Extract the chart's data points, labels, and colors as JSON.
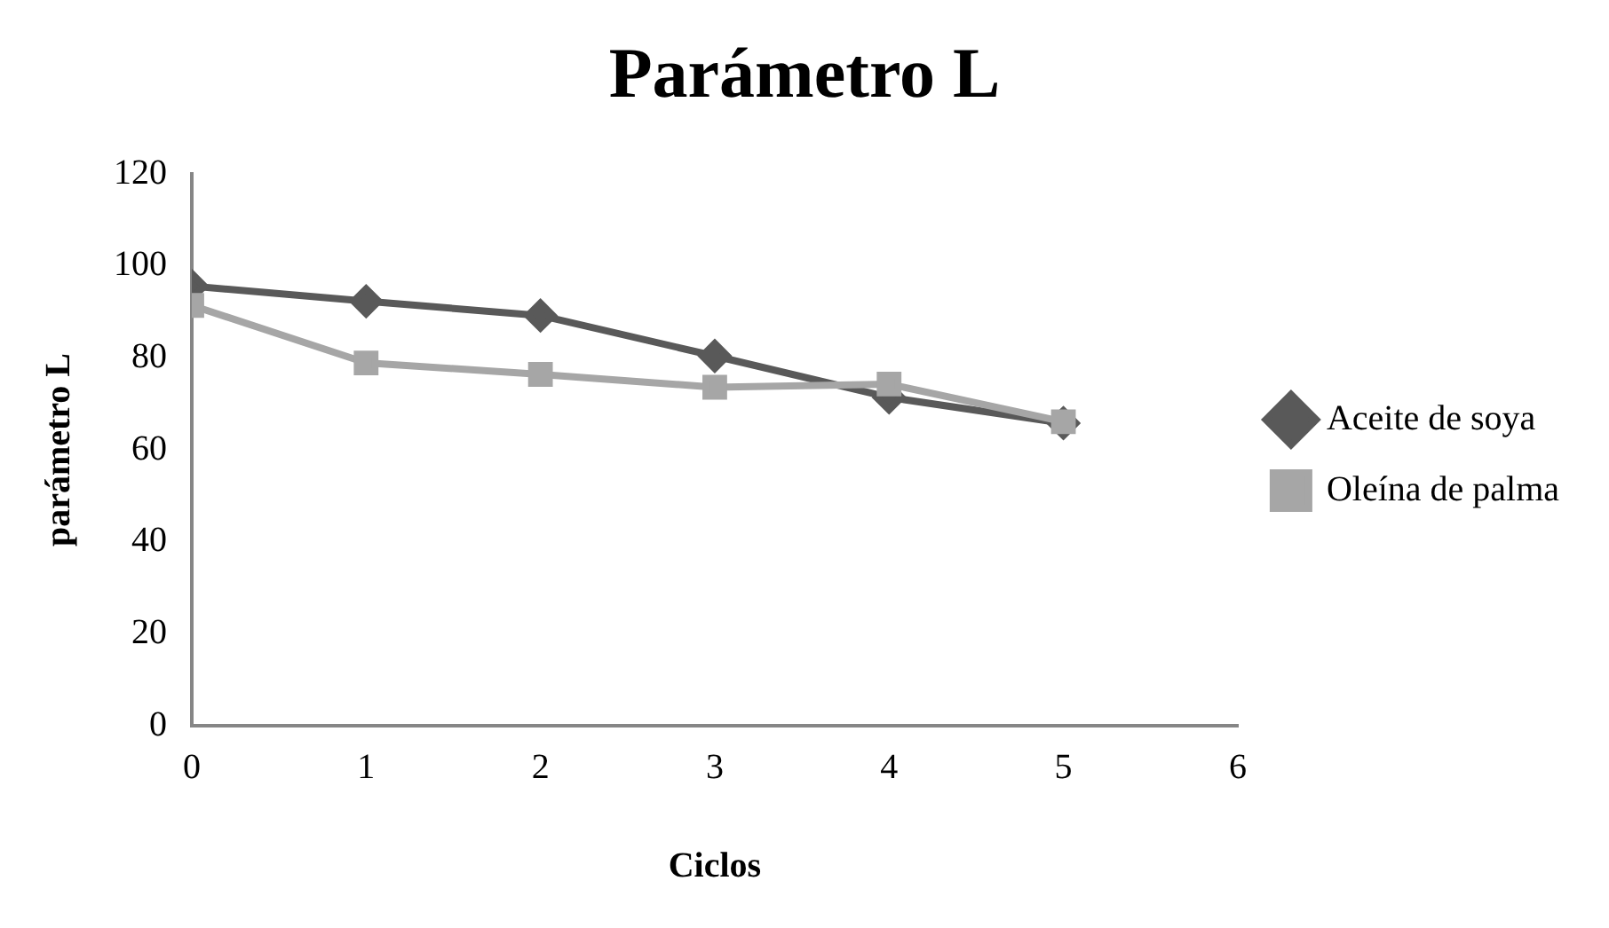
{
  "chart_data": {
    "type": "line",
    "title": "Parámetro L",
    "xlabel": "Ciclos",
    "ylabel": "parámetro L",
    "x": [
      0,
      1,
      2,
      3,
      4,
      5
    ],
    "series": [
      {
        "name": "Aceite de soya",
        "color": "#595959",
        "marker": "diamond",
        "values": [
          95.6,
          92.3,
          89.2,
          80.4,
          71.4,
          65.8
        ]
      },
      {
        "name": "Oleína de palma",
        "color": "#a6a6a6",
        "marker": "square",
        "values": [
          91.4,
          78.9,
          76.4,
          73.6,
          74.3,
          66.1
        ]
      }
    ],
    "xlim": [
      0,
      6
    ],
    "xticks": [
      0,
      1,
      2,
      3,
      4,
      5,
      6
    ],
    "ylim": [
      0,
      120
    ],
    "yticks": [
      0,
      20,
      40,
      60,
      80,
      100,
      120
    ],
    "grid": false,
    "legend": "right",
    "line_style": "solid"
  }
}
